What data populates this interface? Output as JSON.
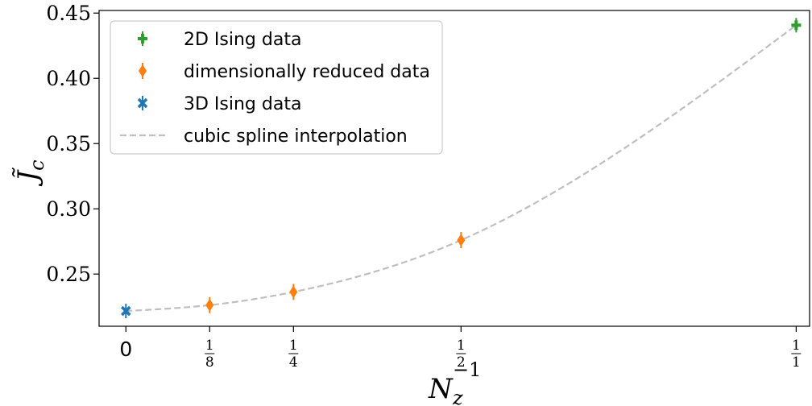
{
  "chart_data": {
    "type": "scatter",
    "xlabel": "N_z^-1",
    "xlabel_parts": {
      "base": "N",
      "sub": "z",
      "sup": "−1"
    },
    "ylabel": "J̃_c",
    "ylabel_parts": {
      "base": "J̃",
      "sub": "c"
    },
    "xlim": [
      -0.04,
      1.02
    ],
    "ylim": [
      0.21,
      0.452
    ],
    "yticks": [
      0.25,
      0.3,
      0.35,
      0.4,
      0.45
    ],
    "ytick_labels": [
      "0.25",
      "0.30",
      "0.35",
      "0.40",
      "0.45"
    ],
    "xticks": [
      {
        "value": 0,
        "label": "0"
      },
      {
        "value": 0.125,
        "num": "1",
        "den": "8"
      },
      {
        "value": 0.25,
        "num": "1",
        "den": "4"
      },
      {
        "value": 0.5,
        "num": "1",
        "den": "2"
      },
      {
        "value": 1.0,
        "num": "1",
        "den": "1"
      }
    ],
    "grid": false,
    "legend_position": "top-left",
    "series": [
      {
        "name": "2D Ising data",
        "marker": "plus",
        "color": "#2ca02c",
        "points": [
          {
            "x": 1.0,
            "y": 0.4407
          }
        ]
      },
      {
        "name": "dimensionally reduced data",
        "marker": "diamond",
        "color": "#ff7f0e",
        "points": [
          {
            "x": 0.125,
            "y": 0.2262
          },
          {
            "x": 0.25,
            "y": 0.2363
          },
          {
            "x": 0.5,
            "y": 0.276
          }
        ]
      },
      {
        "name": "3D Ising data",
        "marker": "x",
        "color": "#1f77b4",
        "points": [
          {
            "x": 0,
            "y": 0.2217
          }
        ]
      },
      {
        "name": "cubic spline interpolation",
        "marker": "dashed-line",
        "color": "#bfbfbf",
        "curve": {
          "knots_x": [
            0,
            0.125,
            0.25,
            0.5,
            1.0
          ],
          "knots_y": [
            0.2217,
            0.2262,
            0.2363,
            0.276,
            0.4407
          ]
        }
      }
    ]
  }
}
